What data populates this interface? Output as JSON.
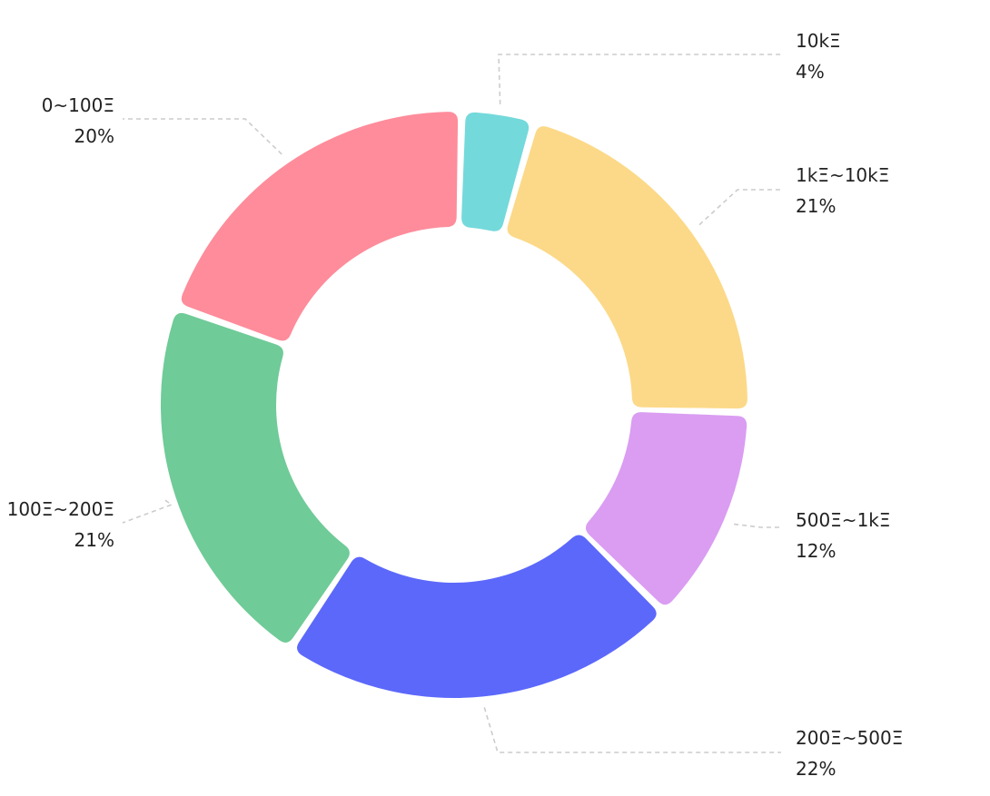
{
  "chart_data": {
    "type": "pie",
    "variant": "donut",
    "slices": [
      {
        "label": "10kΞ",
        "value": 4,
        "value_label": "4%",
        "color": "#74D9DB"
      },
      {
        "label": "1kΞ~10kΞ",
        "value": 21,
        "value_label": "21%",
        "color": "#FCD988"
      },
      {
        "label": "500Ξ~1kΞ",
        "value": 12,
        "value_label": "12%",
        "color": "#DA9DF2"
      },
      {
        "label": "200Ξ~500Ξ",
        "value": 22,
        "value_label": "22%",
        "color": "#5C68FA"
      },
      {
        "label": "100Ξ~200Ξ",
        "value": 21,
        "value_label": "21%",
        "color": "#6FCB97"
      },
      {
        "label": "0~100Ξ",
        "value": 20,
        "value_label": "20%",
        "color": "#FE8C9B"
      }
    ],
    "leader_line_color": "#CCCCCC",
    "label_color": "#222222"
  }
}
